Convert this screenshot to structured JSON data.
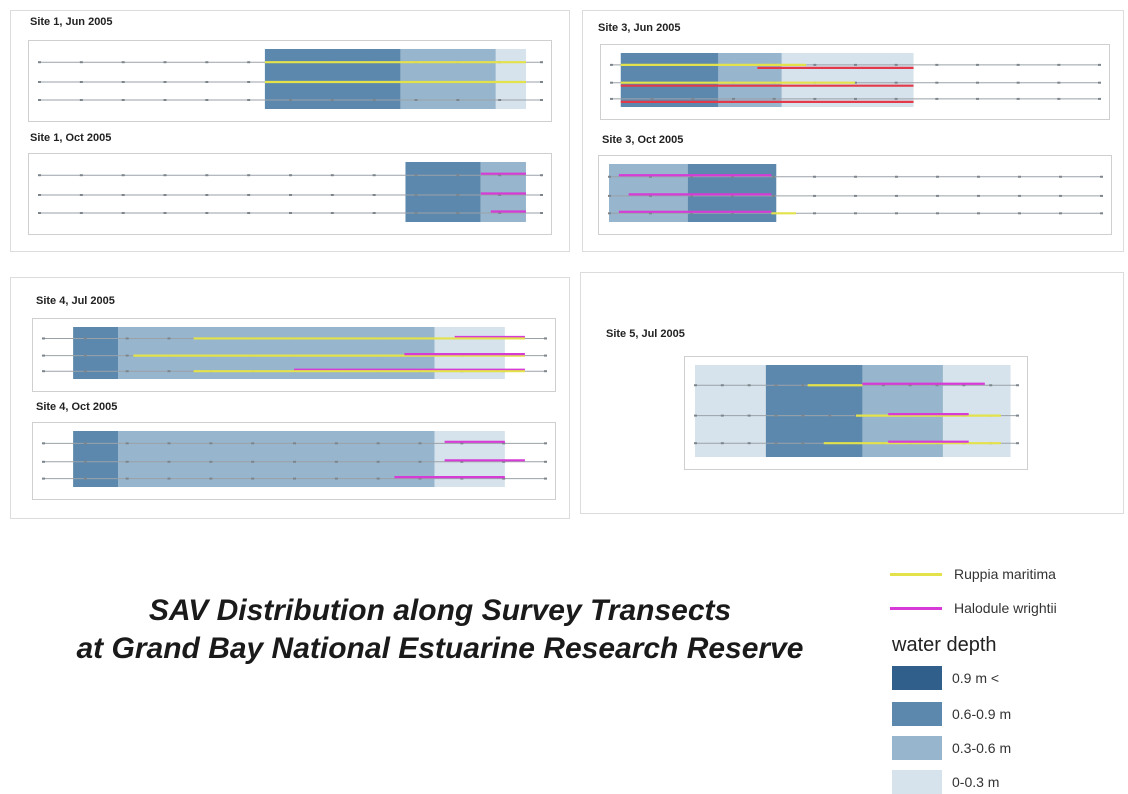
{
  "colors": {
    "depth_0_9_plus": "#2f5f8a",
    "depth_0_6_0_9": "#5d88ad",
    "depth_0_3_0_6": "#97b5cd",
    "depth_0_0_3": "#d6e3ec",
    "ruppia": "#e3e24a",
    "halodule": "#d63bd6",
    "red_line": "#e23a4a",
    "transect_line": "#9aa2a8"
  },
  "main_title": {
    "line1": "SAV Distribution along Survey Transects",
    "line2": "at Grand Bay National Estuarine Research Reserve"
  },
  "legend": {
    "species": [
      {
        "label": "Ruppia maritima",
        "color_key": "ruppia"
      },
      {
        "label": "Halodule wrightii",
        "color_key": "halodule"
      }
    ],
    "water_depth_title": "water depth",
    "depths": [
      {
        "label": "0.9 m <",
        "color_key": "depth_0_9_plus"
      },
      {
        "label": "0.6-0.9 m",
        "color_key": "depth_0_6_0_9"
      },
      {
        "label": "0.3-0.6 m",
        "color_key": "depth_0_3_0_6"
      },
      {
        "label": "0-0.3 m",
        "color_key": "depth_0_0_3"
      }
    ]
  },
  "sites": [
    {
      "title": "Site 1, Jun 2005",
      "depth_blocks": [
        {
          "from": 0.45,
          "to": 0.72,
          "depth": "depth_0_6_0_9"
        },
        {
          "from": 0.72,
          "to": 0.91,
          "depth": "depth_0_3_0_6"
        },
        {
          "from": 0.91,
          "to": 0.97,
          "depth": "depth_0_0_3"
        }
      ],
      "segments": [
        {
          "transect": 0,
          "from": 0.45,
          "to": 0.97,
          "species": "ruppia"
        },
        {
          "transect": 1,
          "from": 0.45,
          "to": 0.97,
          "species": "ruppia"
        }
      ]
    },
    {
      "title": "Site 1, Oct 2005",
      "depth_blocks": [
        {
          "from": 0.73,
          "to": 0.88,
          "depth": "depth_0_6_0_9"
        },
        {
          "from": 0.88,
          "to": 0.97,
          "depth": "depth_0_3_0_6"
        }
      ],
      "segments": [
        {
          "transect": 0,
          "from": 0.88,
          "to": 0.97,
          "species": "halodule"
        },
        {
          "transect": 1,
          "from": 0.88,
          "to": 0.97,
          "species": "halodule"
        },
        {
          "transect": 2,
          "from": 0.9,
          "to": 0.97,
          "species": "halodule"
        }
      ]
    },
    {
      "title": "Site 3, Jun 2005",
      "depth_blocks": [
        {
          "from": 0.02,
          "to": 0.22,
          "depth": "depth_0_6_0_9"
        },
        {
          "from": 0.22,
          "to": 0.35,
          "depth": "depth_0_3_0_6"
        },
        {
          "from": 0.35,
          "to": 0.62,
          "depth": "depth_0_0_3"
        }
      ],
      "segments": [
        {
          "transect": 0,
          "from": 0.02,
          "to": 0.4,
          "species": "ruppia"
        },
        {
          "transect": 0,
          "from": 0.3,
          "to": 0.62,
          "species": "red_line"
        },
        {
          "transect": 1,
          "from": 0.02,
          "to": 0.62,
          "species": "red_line"
        },
        {
          "transect": 1,
          "from": 0.02,
          "to": 0.5,
          "species": "ruppia"
        },
        {
          "transect": 2,
          "from": 0.02,
          "to": 0.62,
          "species": "red_line"
        }
      ]
    },
    {
      "title": "Site 3, Oct 2005",
      "depth_blocks": [
        {
          "from": 0.0,
          "to": 0.16,
          "depth": "depth_0_3_0_6"
        },
        {
          "from": 0.16,
          "to": 0.34,
          "depth": "depth_0_6_0_9"
        }
      ],
      "segments": [
        {
          "transect": 0,
          "from": 0.02,
          "to": 0.33,
          "species": "halodule"
        },
        {
          "transect": 1,
          "from": 0.04,
          "to": 0.33,
          "species": "halodule"
        },
        {
          "transect": 2,
          "from": 0.02,
          "to": 0.33,
          "species": "halodule"
        },
        {
          "transect": 2,
          "from": 0.33,
          "to": 0.38,
          "species": "ruppia"
        }
      ]
    },
    {
      "title": "Site 4, Jul 2005",
      "depth_blocks": [
        {
          "from": 0.06,
          "to": 0.15,
          "depth": "depth_0_6_0_9"
        },
        {
          "from": 0.15,
          "to": 0.78,
          "depth": "depth_0_3_0_6"
        },
        {
          "from": 0.78,
          "to": 0.92,
          "depth": "depth_0_0_3"
        }
      ],
      "segments": [
        {
          "transect": 0,
          "from": 0.82,
          "to": 0.96,
          "species": "halodule"
        },
        {
          "transect": 0,
          "from": 0.3,
          "to": 0.96,
          "species": "ruppia"
        },
        {
          "transect": 1,
          "from": 0.18,
          "to": 0.96,
          "species": "ruppia"
        },
        {
          "transect": 1,
          "from": 0.72,
          "to": 0.96,
          "species": "halodule"
        },
        {
          "transect": 2,
          "from": 0.5,
          "to": 0.96,
          "species": "halodule"
        },
        {
          "transect": 2,
          "from": 0.3,
          "to": 0.96,
          "species": "ruppia"
        }
      ]
    },
    {
      "title": "Site 4, Oct 2005",
      "depth_blocks": [
        {
          "from": 0.06,
          "to": 0.15,
          "depth": "depth_0_6_0_9"
        },
        {
          "from": 0.15,
          "to": 0.78,
          "depth": "depth_0_3_0_6"
        },
        {
          "from": 0.78,
          "to": 0.92,
          "depth": "depth_0_0_3"
        }
      ],
      "segments": [
        {
          "transect": 0,
          "from": 0.8,
          "to": 0.92,
          "species": "halodule"
        },
        {
          "transect": 1,
          "from": 0.8,
          "to": 0.96,
          "species": "halodule"
        },
        {
          "transect": 2,
          "from": 0.7,
          "to": 0.92,
          "species": "halodule"
        }
      ]
    },
    {
      "title": "Site 5, Jul 2005",
      "depth_blocks": [
        {
          "from": 0.0,
          "to": 0.22,
          "depth": "depth_0_0_3"
        },
        {
          "from": 0.22,
          "to": 0.52,
          "depth": "depth_0_6_0_9"
        },
        {
          "from": 0.52,
          "to": 0.77,
          "depth": "depth_0_3_0_6"
        },
        {
          "from": 0.77,
          "to": 0.98,
          "depth": "depth_0_0_3"
        }
      ],
      "segments": [
        {
          "transect": 0,
          "from": 0.35,
          "to": 0.52,
          "species": "ruppia"
        },
        {
          "transect": 0,
          "from": 0.52,
          "to": 0.9,
          "species": "halodule"
        },
        {
          "transect": 1,
          "from": 0.5,
          "to": 0.95,
          "species": "ruppia"
        },
        {
          "transect": 1,
          "from": 0.6,
          "to": 0.85,
          "species": "halodule"
        },
        {
          "transect": 2,
          "from": 0.4,
          "to": 0.95,
          "species": "ruppia"
        },
        {
          "transect": 2,
          "from": 0.6,
          "to": 0.85,
          "species": "halodule"
        }
      ]
    }
  ]
}
